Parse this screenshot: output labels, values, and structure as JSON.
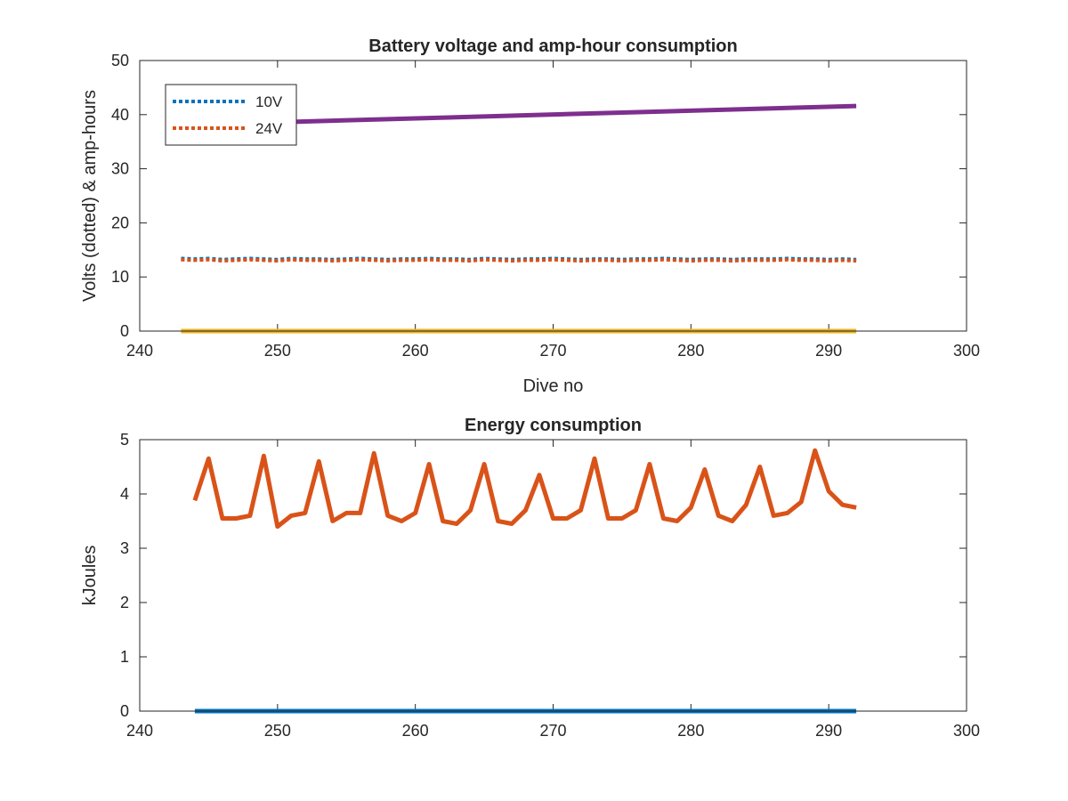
{
  "chart_data": [
    {
      "type": "line",
      "title": "Battery voltage and amp-hour consumption",
      "xlabel": "Dive no",
      "ylabel": "Volts (dotted) & amp-hours",
      "xlim": [
        240,
        300
      ],
      "ylim": [
        0,
        50
      ],
      "xticks": [
        240,
        250,
        260,
        270,
        280,
        290,
        300
      ],
      "yticks": [
        0,
        10,
        20,
        30,
        40,
        50
      ],
      "legend_position": "top-left",
      "series": [
        {
          "name": "10V",
          "color": "#0072BD",
          "style": "dotted",
          "in_legend": true,
          "x": [
            243,
            244,
            245,
            246,
            247,
            248,
            249,
            250,
            251,
            252,
            253,
            254,
            255,
            256,
            257,
            258,
            259,
            260,
            261,
            262,
            263,
            264,
            265,
            266,
            267,
            268,
            269,
            270,
            271,
            272,
            273,
            274,
            275,
            276,
            277,
            278,
            279,
            280,
            281,
            282,
            283,
            284,
            285,
            286,
            287,
            288,
            289,
            290,
            291,
            292
          ],
          "y": [
            13.4,
            13.3,
            13.4,
            13.2,
            13.3,
            13.4,
            13.3,
            13.2,
            13.4,
            13.3,
            13.3,
            13.2,
            13.3,
            13.4,
            13.3,
            13.2,
            13.3,
            13.3,
            13.4,
            13.3,
            13.3,
            13.2,
            13.4,
            13.3,
            13.2,
            13.3,
            13.3,
            13.4,
            13.3,
            13.2,
            13.3,
            13.3,
            13.2,
            13.3,
            13.3,
            13.4,
            13.3,
            13.2,
            13.3,
            13.3,
            13.2,
            13.3,
            13.3,
            13.3,
            13.4,
            13.3,
            13.3,
            13.2,
            13.3,
            13.2
          ]
        },
        {
          "name": "24V",
          "color": "#D95319",
          "style": "dotted",
          "in_legend": true,
          "x": [
            243,
            244,
            245,
            246,
            247,
            248,
            249,
            250,
            251,
            252,
            253,
            254,
            255,
            256,
            257,
            258,
            259,
            260,
            261,
            262,
            263,
            264,
            265,
            266,
            267,
            268,
            269,
            270,
            271,
            272,
            273,
            274,
            275,
            276,
            277,
            278,
            279,
            280,
            281,
            282,
            283,
            284,
            285,
            286,
            287,
            288,
            289,
            290,
            291,
            292
          ],
          "y": [
            13.2,
            13.1,
            13.2,
            13.0,
            13.1,
            13.2,
            13.1,
            13.0,
            13.2,
            13.1,
            13.1,
            13.0,
            13.1,
            13.2,
            13.1,
            13.0,
            13.1,
            13.1,
            13.2,
            13.1,
            13.1,
            13.0,
            13.2,
            13.1,
            13.0,
            13.1,
            13.1,
            13.2,
            13.1,
            13.0,
            13.1,
            13.1,
            13.0,
            13.1,
            13.1,
            13.2,
            13.1,
            13.0,
            13.1,
            13.1,
            13.0,
            13.1,
            13.1,
            13.1,
            13.2,
            13.1,
            13.1,
            13.0,
            13.1,
            13.0
          ]
        },
        {
          "color": "#EDB120",
          "style": "solid",
          "in_legend": false,
          "x": [
            243,
            292
          ],
          "y": [
            0,
            0
          ]
        },
        {
          "color": "#7E2F8E",
          "style": "solid",
          "in_legend": false,
          "x": [
            243,
            292
          ],
          "y": [
            38.1,
            41.6
          ]
        }
      ]
    },
    {
      "type": "line",
      "title": "Energy consumption",
      "xlabel": "",
      "ylabel": "kJoules",
      "xlim": [
        240,
        300
      ],
      "ylim": [
        0,
        5
      ],
      "xticks": [
        240,
        250,
        260,
        270,
        280,
        290,
        300
      ],
      "yticks": [
        0,
        1,
        2,
        3,
        4,
        5
      ],
      "series": [
        {
          "color": "#0072BD",
          "style": "solid",
          "x": [
            244,
            292
          ],
          "y": [
            0,
            0
          ]
        },
        {
          "color": "#D95319",
          "style": "solid",
          "x": [
            244,
            245,
            246,
            247,
            248,
            249,
            250,
            251,
            252,
            253,
            254,
            255,
            256,
            257,
            258,
            259,
            260,
            261,
            262,
            263,
            264,
            265,
            266,
            267,
            268,
            269,
            270,
            271,
            272,
            273,
            274,
            275,
            276,
            277,
            278,
            279,
            280,
            281,
            282,
            283,
            284,
            285,
            286,
            287,
            288,
            289,
            290,
            291,
            292
          ],
          "y": [
            3.88,
            4.65,
            3.55,
            3.55,
            3.6,
            4.7,
            3.4,
            3.6,
            3.65,
            4.6,
            3.5,
            3.65,
            3.65,
            4.75,
            3.6,
            3.5,
            3.65,
            4.55,
            3.5,
            3.45,
            3.7,
            4.55,
            3.5,
            3.45,
            3.7,
            4.35,
            3.55,
            3.55,
            3.7,
            4.65,
            3.55,
            3.55,
            3.7,
            4.55,
            3.55,
            3.5,
            3.75,
            4.45,
            3.6,
            3.5,
            3.8,
            4.5,
            3.6,
            3.65,
            3.85,
            4.8,
            4.05,
            3.8,
            3.75
          ]
        }
      ]
    }
  ]
}
